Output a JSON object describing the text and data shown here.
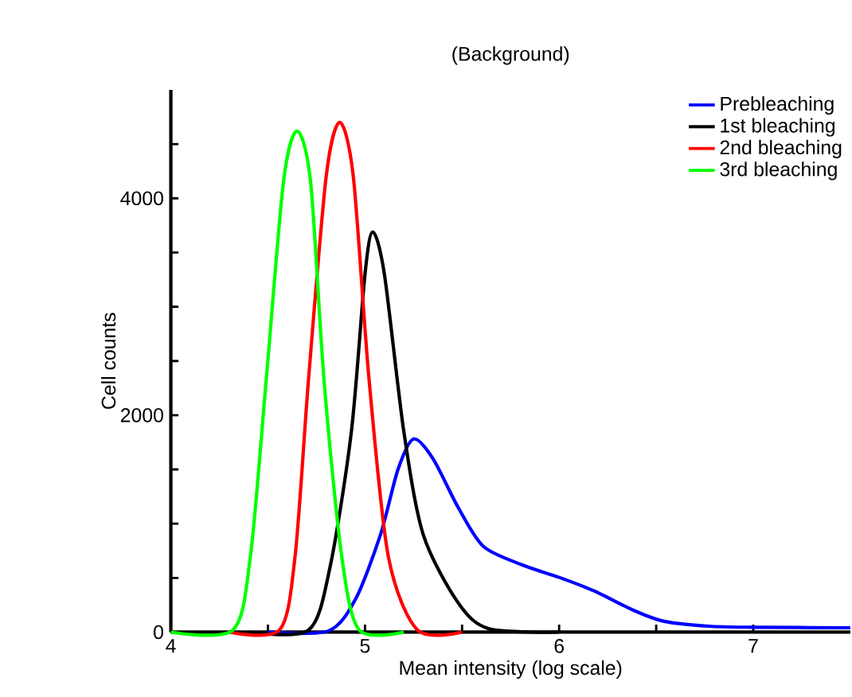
{
  "chart_data": {
    "type": "line",
    "title": "(Background)",
    "xlabel": "Mean intensity (log scale)",
    "ylabel": "Cell counts",
    "xlim": [
      4,
      7.5
    ],
    "ylim": [
      0,
      5000
    ],
    "xticks": [
      4,
      {
        "value": 4.5,
        "label": null
      },
      5,
      {
        "value": 5.5,
        "label": null
      },
      6,
      {
        "value": 6.5,
        "label": null
      },
      7
    ],
    "yticks": [
      0,
      {
        "value": 500,
        "label": null
      },
      {
        "value": 1000,
        "label": null
      },
      {
        "value": 1500,
        "label": null
      },
      2000,
      {
        "value": 2500,
        "label": null
      },
      {
        "value": 3000,
        "label": null
      },
      {
        "value": 3500,
        "label": null
      },
      4000,
      {
        "value": 4500,
        "label": null
      }
    ],
    "legend": "top right",
    "marker": "none",
    "line_style": "solid",
    "grid": false,
    "series": [
      {
        "name": "Prebleaching",
        "color": "#0000ff",
        "x": [
          4.5,
          4.81,
          4.95,
          5.08,
          5.17,
          5.25,
          5.35,
          5.48,
          5.61,
          5.81,
          6.0,
          6.18,
          6.39,
          6.54,
          6.77,
          7.0,
          7.5
        ],
        "values": [
          0,
          10,
          300,
          900,
          1500,
          1780,
          1600,
          1150,
          790,
          620,
          505,
          380,
          196,
          100,
          55,
          45,
          40
        ]
      },
      {
        "name": "1st bleaching",
        "color": "#000000",
        "x": [
          4.4,
          4.71,
          4.82,
          4.93,
          5.0,
          5.04,
          5.1,
          5.2,
          5.3,
          5.48,
          5.64,
          6.0
        ],
        "values": [
          0,
          20,
          600,
          1850,
          3300,
          3690,
          3300,
          1850,
          900,
          270,
          30,
          0
        ]
      },
      {
        "name": "2nd bleaching",
        "color": "#ff0000",
        "x": [
          4.3,
          4.56,
          4.64,
          4.71,
          4.8,
          4.87,
          4.94,
          5.02,
          5.12,
          5.27,
          5.5
        ],
        "values": [
          0,
          20,
          700,
          2350,
          4200,
          4700,
          4200,
          2350,
          700,
          20,
          0
        ]
      },
      {
        "name": "3rd bleaching",
        "color": "#00ff00",
        "x": [
          4.0,
          4.32,
          4.41,
          4.49,
          4.58,
          4.65,
          4.72,
          4.79,
          4.88,
          4.97,
          5.2
        ],
        "values": [
          0,
          20,
          700,
          2300,
          4150,
          4620,
          4150,
          2300,
          700,
          20,
          0
        ]
      }
    ]
  }
}
